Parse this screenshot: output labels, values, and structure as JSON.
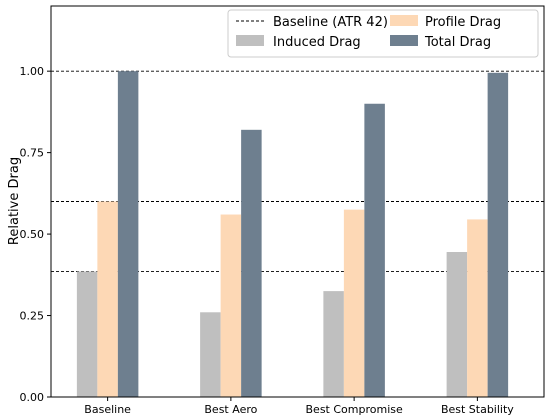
{
  "chart_data": {
    "type": "bar",
    "title": "",
    "xlabel": "",
    "ylabel": "Relative Drag",
    "categories": [
      "Baseline",
      "Best Aero",
      "Best Compromise",
      "Best Stability"
    ],
    "series": [
      {
        "name": "Induced Drag",
        "values": [
          0.385,
          0.26,
          0.325,
          0.445
        ],
        "color": "#bfbfbf"
      },
      {
        "name": "Profile Drag",
        "values": [
          0.6,
          0.56,
          0.575,
          0.545
        ],
        "color": "#fdd8b5"
      },
      {
        "name": "Total Drag",
        "values": [
          1.0,
          0.82,
          0.9,
          0.995
        ],
        "color": "#6e7f8f"
      }
    ],
    "reference_lines": {
      "name": "Baseline (ATR 42)",
      "values": [
        1.0,
        0.6,
        0.385
      ],
      "style": "dashed"
    },
    "ylim": [
      0,
      1.2
    ],
    "yticks": [
      0.0,
      0.25,
      0.5,
      0.75,
      1.0
    ],
    "ytick_labels": [
      "0.00",
      "0.25",
      "0.50",
      "0.75",
      "1.00"
    ],
    "grid": false,
    "legend_position": "top-right"
  }
}
